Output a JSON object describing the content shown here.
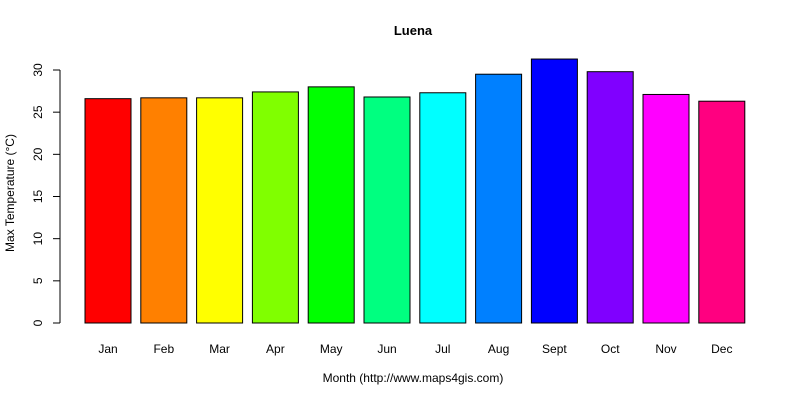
{
  "chart_data": {
    "type": "bar",
    "title": "Luena",
    "xlabel": "Month (http://www.maps4gis.com)",
    "ylabel": "Max Temperature (°C)",
    "categories": [
      "Jan",
      "Feb",
      "Mar",
      "Apr",
      "May",
      "Jun",
      "Jul",
      "Aug",
      "Sept",
      "Oct",
      "Nov",
      "Dec"
    ],
    "values": [
      26.6,
      26.7,
      26.7,
      27.4,
      28.0,
      26.8,
      27.3,
      29.5,
      31.3,
      29.8,
      27.1,
      26.3
    ],
    "colors": [
      "#FF0000",
      "#FF8000",
      "#FFFF00",
      "#80FF00",
      "#00FF00",
      "#00FF80",
      "#00FFFF",
      "#0080FF",
      "#0000FF",
      "#8000FF",
      "#FF00FF",
      "#FF0080"
    ],
    "ylim": [
      0,
      30
    ],
    "yticks": [
      0,
      5,
      10,
      15,
      20,
      25,
      30
    ],
    "grid": false,
    "legend": "none"
  }
}
